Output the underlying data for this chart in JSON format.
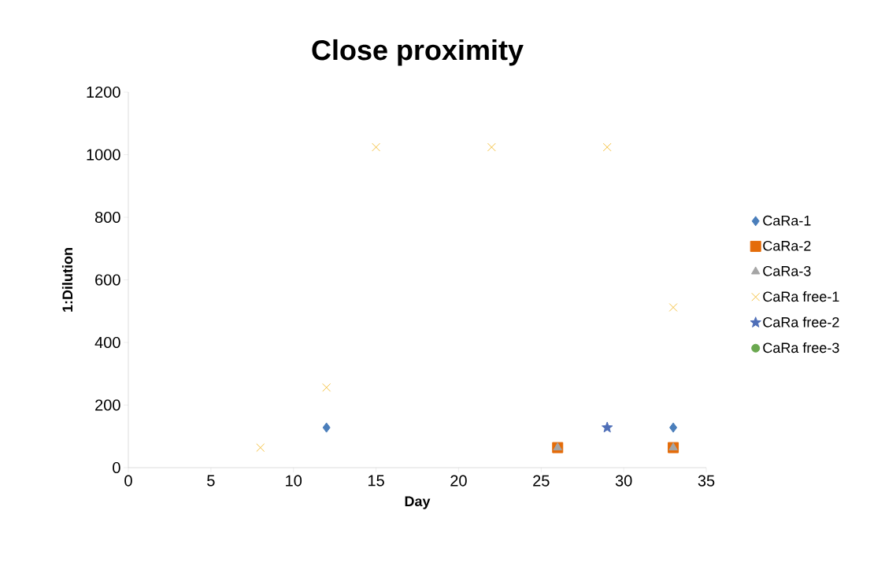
{
  "chart_data": {
    "type": "scatter",
    "title": "Close proximity",
    "xlabel": "Day",
    "ylabel": "1:Dilution",
    "series": [
      {
        "name": "CaRa-1",
        "color": "#4a7ebb",
        "marker": "diamond",
        "x": [
          12,
          33
        ],
        "values": [
          128,
          128
        ]
      },
      {
        "name": "CaRa-2",
        "color": "#e46c0a",
        "marker": "square",
        "x": [
          26,
          33
        ],
        "values": [
          64,
          64
        ]
      },
      {
        "name": "CaRa-3",
        "color": "#a5a5a5",
        "marker": "triangle",
        "x": [
          26,
          33
        ],
        "values": [
          64,
          64
        ]
      },
      {
        "name": "CaRa free-1",
        "color": "#f5c242",
        "marker": "cross",
        "x": [
          8,
          12,
          15,
          22,
          29,
          33
        ],
        "values": [
          64,
          256,
          1024,
          1024,
          1024,
          512
        ]
      },
      {
        "name": "CaRa free-2",
        "color": "#4f6fb8",
        "marker": "star",
        "x": [
          29
        ],
        "values": [
          128
        ]
      },
      {
        "name": "CaRa free-3",
        "color": "#6aa84f",
        "marker": "circle"
      }
    ],
    "xlim": [
      0,
      35
    ],
    "xticks": [
      0,
      5,
      10,
      15,
      20,
      25,
      30,
      35
    ],
    "ylim": [
      0,
      1200
    ],
    "yticks": [
      0,
      200,
      400,
      600,
      800,
      1000,
      1200
    ],
    "grid": false,
    "legend": "right"
  }
}
